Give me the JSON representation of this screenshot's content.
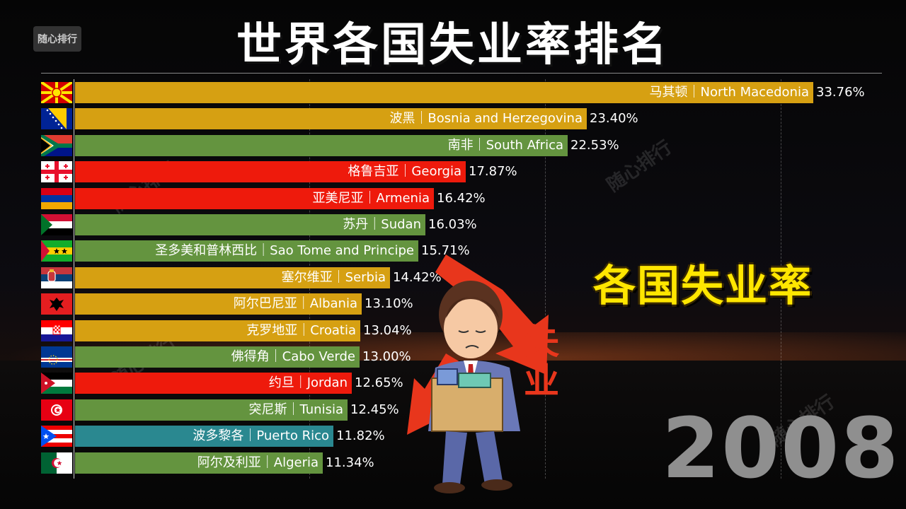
{
  "watermark": "随心排行",
  "title": "世界各国失业率排名",
  "subtitle": "各国失业率",
  "year": "2008",
  "illustration_text": "失业",
  "colors": {
    "gold": "#d6a012",
    "green": "#64943f",
    "red": "#ee1a0c",
    "teal": "#2a8890"
  },
  "chart_data": {
    "type": "bar",
    "orientation": "horizontal",
    "xlim": [
      0,
      35
    ],
    "categories": [
      "马其顿｜North Macedonia",
      "波黑｜Bosnia and Herzegovina",
      "南非｜South Africa",
      "格鲁吉亚｜Georgia",
      "亚美尼亚｜Armenia",
      "苏丹｜Sudan",
      "圣多美和普林西比｜Sao Tome and Principe",
      "塞尔维亚｜Serbia",
      "阿尔巴尼亚｜Albania",
      "克罗地亚｜Croatia",
      "佛得角｜Cabo Verde",
      "约旦｜Jordan",
      "突尼斯｜Tunisia",
      "波多黎各｜Puerto Rico",
      "阿尔及利亚｜Algeria"
    ],
    "values": [
      33.76,
      23.4,
      22.53,
      17.87,
      16.42,
      16.03,
      15.71,
      14.42,
      13.1,
      13.04,
      13.0,
      12.65,
      12.45,
      11.82,
      11.34
    ],
    "value_labels": [
      "33.76%",
      "23.40%",
      "22.53%",
      "17.87%",
      "16.42%",
      "16.03%",
      "15.71%",
      "14.42%",
      "13.10%",
      "13.04%",
      "13.00%",
      "12.65%",
      "12.45%",
      "11.82%",
      "11.34%"
    ],
    "bar_colors": [
      "#d6a012",
      "#d6a012",
      "#64943f",
      "#ee1a0c",
      "#ee1a0c",
      "#64943f",
      "#64943f",
      "#d6a012",
      "#d6a012",
      "#d6a012",
      "#64943f",
      "#ee1a0c",
      "#64943f",
      "#2a8890",
      "#64943f"
    ],
    "flags": [
      "north-macedonia-flag-icon",
      "bosnia-flag-icon",
      "south-africa-flag-icon",
      "georgia-flag-icon",
      "armenia-flag-icon",
      "sudan-flag-icon",
      "sao-tome-flag-icon",
      "serbia-flag-icon",
      "albania-flag-icon",
      "croatia-flag-icon",
      "cabo-verde-flag-icon",
      "jordan-flag-icon",
      "tunisia-flag-icon",
      "puerto-rico-flag-icon",
      "algeria-flag-icon"
    ]
  }
}
